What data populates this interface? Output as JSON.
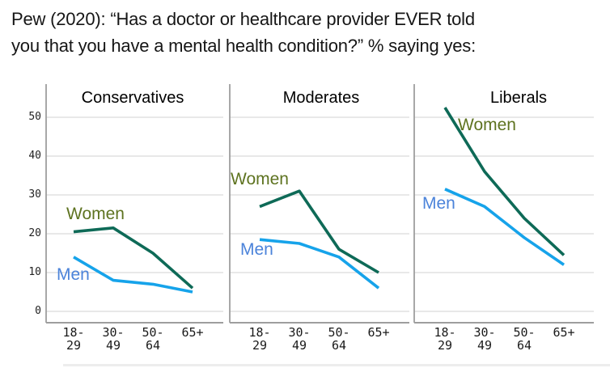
{
  "title": {
    "lines": [
      "Pew (2020): “Has a doctor or healthcare provider EVER told",
      "you that you have a mental health condition?” % saying yes:"
    ]
  },
  "chart_data": {
    "type": "line",
    "categories": [
      "18-29",
      "30-49",
      "50-64",
      "65+"
    ],
    "x_tick_display": [
      [
        "18-",
        "29"
      ],
      [
        "30-",
        "49"
      ],
      [
        "50-",
        "64"
      ],
      [
        "65+"
      ]
    ],
    "yticks": [
      0,
      10,
      20,
      30,
      40,
      50
    ],
    "ylim": [
      0,
      55
    ],
    "grid": true,
    "legend_position": "inline-labels",
    "panels": [
      {
        "title": "Conservatives",
        "series": [
          {
            "name": "Women",
            "values": [
              20.5,
              21.5,
              15,
              6
            ]
          },
          {
            "name": "Men",
            "values": [
              14,
              8,
              7,
              5
            ]
          }
        ]
      },
      {
        "title": "Moderates",
        "series": [
          {
            "name": "Women",
            "values": [
              27,
              31,
              16,
              10
            ]
          },
          {
            "name": "Men",
            "values": [
              18.5,
              17.5,
              14,
              6
            ]
          }
        ]
      },
      {
        "title": "Liberals",
        "series": [
          {
            "name": "Women",
            "values": [
              52.5,
              36,
              24,
              14.5
            ]
          },
          {
            "name": "Men",
            "values": [
              31.5,
              27,
              19,
              12
            ]
          }
        ]
      }
    ],
    "colors": {
      "women_line": "#0e6a57",
      "women_label": "#5e7320",
      "men_line": "#16a3ea",
      "men_label": "#4b83da",
      "grid": "#d9d9d9",
      "axis": "#9e9e9e"
    }
  }
}
